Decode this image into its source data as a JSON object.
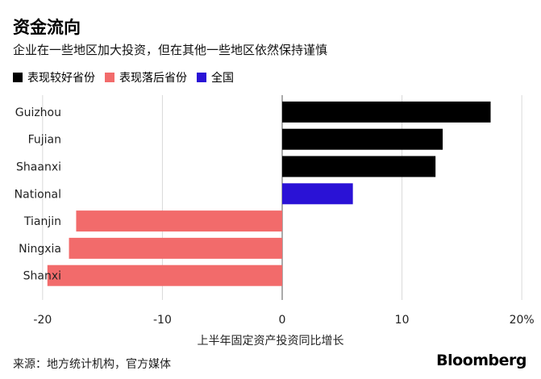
{
  "title": "资金流向",
  "subtitle": "企业在一些地区加大投资，但在其他一些地区依然保持谨慎",
  "legend": [
    {
      "label": "表现较好省份",
      "color": "#000000"
    },
    {
      "label": "表现落后省份",
      "color": "#f26b6b"
    },
    {
      "label": "全国",
      "color": "#2a12d6"
    }
  ],
  "source": "来源：地方统计机构，官方媒体",
  "logo": "Bloomberg",
  "chart_data": {
    "type": "bar",
    "orientation": "horizontal",
    "categories": [
      "Guizhou",
      "Fujian",
      "Shaanxi",
      "National",
      "Tianjin",
      "Ningxia",
      "Shanxi"
    ],
    "values": [
      17.4,
      13.4,
      12.8,
      5.9,
      -17.2,
      -17.8,
      -19.6
    ],
    "groups": [
      "表现较好省份",
      "表现较好省份",
      "表现较好省份",
      "全国",
      "表现落后省份",
      "表现落后省份",
      "表现落后省份"
    ],
    "xlabel": "上半年固定资产投资同比增长",
    "xlim": [
      -21,
      21
    ],
    "ticks": [
      -20,
      -10,
      0,
      10,
      20
    ],
    "tick_labels": [
      "-20",
      "-10",
      "0",
      "10",
      "20%"
    ],
    "grid": true
  }
}
